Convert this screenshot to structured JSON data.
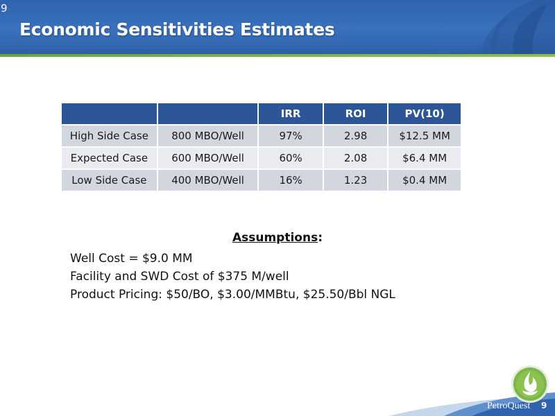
{
  "slide": {
    "number_top": "9",
    "title": "Economic Sensitivities Estimates",
    "page_number": "9",
    "brand": "PetroQuest"
  },
  "table": {
    "headers": [
      "",
      "",
      "IRR",
      "ROI",
      "PV(10)"
    ],
    "rows": [
      [
        "High Side Case",
        "800 MBO/Well",
        "97%",
        "2.98",
        "$12.5 MM"
      ],
      [
        "Expected Case",
        "600 MBO/Well",
        "60%",
        "2.08",
        "$6.4 MM"
      ],
      [
        "Low Side Case",
        "400 MBO/Well",
        "16%",
        "1.23",
        "$0.4 MM"
      ]
    ]
  },
  "assumptions": {
    "heading": "Assumptions",
    "heading_suffix": ":",
    "items": [
      "Well Cost = $9.0 MM",
      "Facility and SWD Cost of $375 M/well",
      "Product Pricing: $50/BO, $3.00/MMBtu, $25.50/Bbl NGL"
    ]
  },
  "icons": [
    "header-flame-icon",
    "flame-logo-icon"
  ],
  "colors": {
    "header_blue": "#3a72bf",
    "table_header": "#2c5697",
    "row_odd": "#d2d6de",
    "row_even": "#e9ebf0",
    "accent_green": "#7ab648"
  }
}
